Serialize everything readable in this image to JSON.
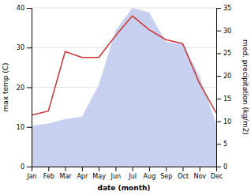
{
  "chart_data": {
    "type": "line",
    "x_label": "date (month)",
    "y_label": "max temp (C)",
    "y2_label": "med. precipitation (kg/m2)",
    "categories": [
      "Jan",
      "Feb",
      "Mar",
      "Apr",
      "May",
      "Jun",
      "Jul",
      "Aug",
      "Sep",
      "Oct",
      "Nov",
      "Dec"
    ],
    "series": [
      {
        "type": "area",
        "axis": "y2",
        "color": "#c8d0f0",
        "values": [
          9.0,
          9.5,
          10.5,
          11.0,
          18.0,
          30.0,
          35.0,
          34.0,
          27.5,
          27.0,
          20.0,
          9.5
        ]
      },
      {
        "type": "line",
        "color": "#cc3333",
        "values": [
          13.0,
          14.0,
          29.0,
          27.5,
          27.5,
          33.0,
          38.0,
          34.5,
          32.0,
          31.0,
          21.0,
          13.5
        ]
      }
    ],
    "ylim": [
      0,
      40
    ],
    "yticks": [
      0,
      10,
      20,
      30,
      40
    ],
    "y2lim": [
      0,
      35
    ],
    "y2ticks": [
      0,
      5,
      10,
      15,
      20,
      25,
      30,
      35
    ],
    "grid": true
  }
}
